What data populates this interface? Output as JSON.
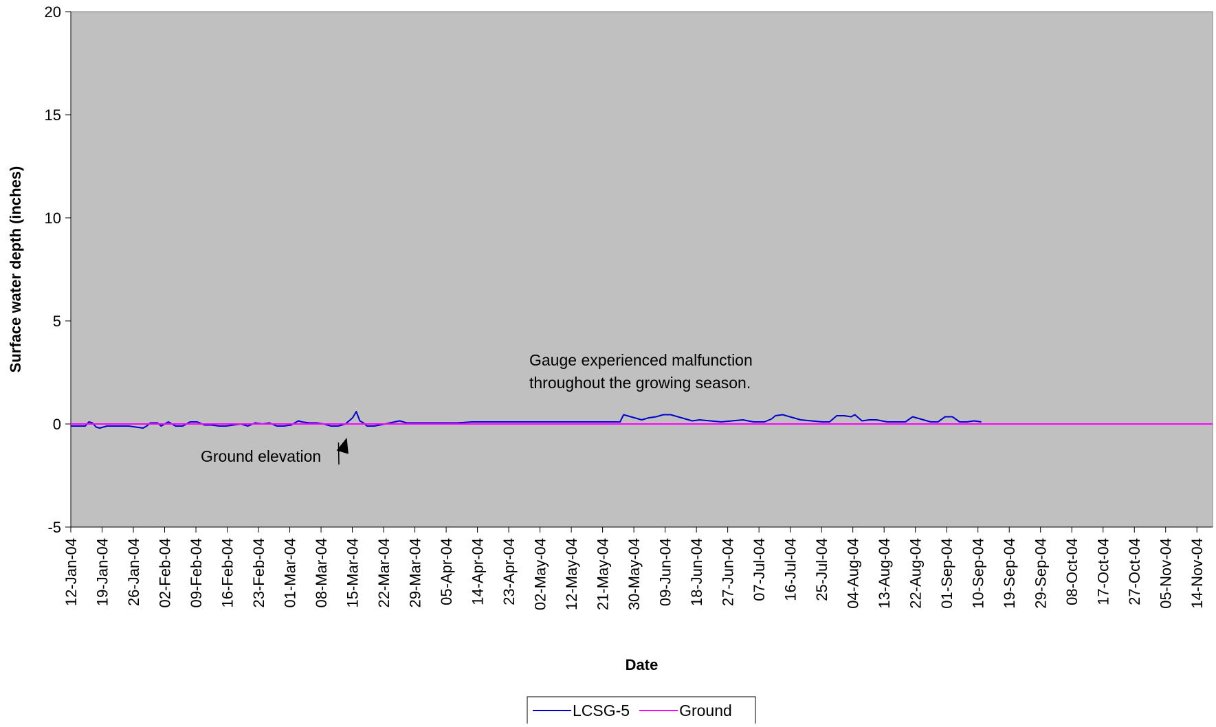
{
  "chart_data": {
    "type": "line",
    "title": "",
    "xlabel": "Date",
    "ylabel": "Surface water depth (inches)",
    "ylim": [
      -5,
      20
    ],
    "yticks": [
      -5,
      0,
      5,
      10,
      15,
      20
    ],
    "xlim": [
      "2004-01-12",
      "2004-11-23"
    ],
    "x_tick_labels": [
      "12-Jan-04",
      "19-Jan-04",
      "26-Jan-04",
      "02-Feb-04",
      "09-Feb-04",
      "16-Feb-04",
      "23-Feb-04",
      "01-Mar-04",
      "08-Mar-04",
      "15-Mar-04",
      "22-Mar-04",
      "29-Mar-04",
      "05-Apr-04",
      "14-Apr-04",
      "23-Apr-04",
      "02-May-04",
      "12-May-04",
      "21-May-04",
      "30-May-04",
      "09-Jun-04",
      "18-Jun-04",
      "27-Jun-04",
      "07-Jul-04",
      "16-Jul-04",
      "25-Jul-04",
      "04-Aug-04",
      "13-Aug-04",
      "22-Aug-04",
      "01-Sep-04",
      "10-Sep-04",
      "19-Sep-04",
      "29-Sep-04",
      "08-Oct-04",
      "17-Oct-04",
      "27-Oct-04",
      "05-Nov-04",
      "14-Nov-04"
    ],
    "grid": false,
    "plot_background": "#c0c0c0",
    "legend": {
      "position": "bottom"
    },
    "series": [
      {
        "name": "LCSG-5",
        "color": "#0000cc",
        "x": [
          "2004-01-12",
          "2004-01-14",
          "2004-01-16",
          "2004-01-17",
          "2004-01-18",
          "2004-01-19",
          "2004-01-20",
          "2004-01-22",
          "2004-01-24",
          "2004-01-26",
          "2004-01-28",
          "2004-01-30",
          "2004-02-01",
          "2004-02-02",
          "2004-02-03",
          "2004-02-05",
          "2004-02-06",
          "2004-02-08",
          "2004-02-10",
          "2004-02-12",
          "2004-02-14",
          "2004-02-16",
          "2004-02-18",
          "2004-02-20",
          "2004-02-22",
          "2004-02-24",
          "2004-02-26",
          "2004-02-28",
          "2004-03-01",
          "2004-03-03",
          "2004-03-05",
          "2004-03-07",
          "2004-03-09",
          "2004-03-11",
          "2004-03-13",
          "2004-03-15",
          "2004-03-16",
          "2004-03-18",
          "2004-03-20",
          "2004-03-22",
          "2004-03-24",
          "2004-03-26",
          "2004-03-28",
          "2004-03-30",
          "2004-03-31",
          "2004-04-01",
          "2004-04-02",
          "2004-04-03",
          "2004-04-05",
          "2004-04-08",
          "2004-04-12",
          "2004-04-14",
          "2004-04-18",
          "2004-04-23",
          "2004-04-28",
          "2004-05-02",
          "2004-05-07",
          "2004-05-12",
          "2004-05-17",
          "2004-05-21",
          "2004-05-26",
          "2004-05-30",
          "2004-06-04",
          "2004-06-09",
          "2004-06-12",
          "2004-06-13",
          "2004-06-15",
          "2004-06-18",
          "2004-06-20",
          "2004-06-22",
          "2004-06-24",
          "2004-06-26",
          "2004-06-28",
          "2004-06-30",
          "2004-07-02",
          "2004-07-04",
          "2004-07-07",
          "2004-07-10",
          "2004-07-13",
          "2004-07-16",
          "2004-07-19",
          "2004-07-22",
          "2004-07-24",
          "2004-07-25",
          "2004-07-27",
          "2004-07-29",
          "2004-08-01",
          "2004-08-04",
          "2004-08-07",
          "2004-08-09",
          "2004-08-11",
          "2004-08-13",
          "2004-08-15",
          "2004-08-16",
          "2004-08-18",
          "2004-08-20",
          "2004-08-22",
          "2004-08-25",
          "2004-08-28",
          "2004-08-30",
          "2004-09-01",
          "2004-09-03",
          "2004-09-06",
          "2004-09-08",
          "2004-09-10",
          "2004-09-12",
          "2004-09-14",
          "2004-09-16",
          "2004-09-18",
          "2004-09-20"
        ],
        "y": [
          -0.1,
          -0.1,
          -0.1,
          0.1,
          0.05,
          -0.15,
          -0.2,
          -0.1,
          -0.1,
          -0.1,
          -0.1,
          -0.15,
          -0.2,
          -0.1,
          0.05,
          0.05,
          -0.1,
          0.1,
          -0.1,
          -0.1,
          0.1,
          0.1,
          -0.05,
          -0.05,
          -0.1,
          -0.1,
          -0.05,
          0.0,
          -0.1,
          0.05,
          0.0,
          0.05,
          -0.1,
          -0.1,
          -0.05,
          0.15,
          0.1,
          0.05,
          0.05,
          0.0,
          -0.1,
          -0.1,
          0.0,
          0.3,
          0.6,
          0.15,
          0.05,
          -0.1,
          -0.1,
          0.0,
          0.15,
          0.05,
          0.05,
          0.05,
          0.05,
          0.1,
          0.1,
          0.1,
          0.1,
          0.1,
          0.1,
          0.1,
          0.1,
          0.1,
          0.1,
          0.45,
          0.35,
          0.2,
          0.3,
          0.35,
          0.45,
          0.45,
          0.35,
          0.25,
          0.15,
          0.2,
          0.15,
          0.1,
          0.15,
          0.2,
          0.1,
          0.1,
          0.25,
          0.4,
          0.45,
          0.35,
          0.2,
          0.15,
          0.1,
          0.1,
          0.4,
          0.4,
          0.35,
          0.45,
          0.15,
          0.2,
          0.2,
          0.1,
          0.1,
          0.1,
          0.35,
          0.25,
          0.1,
          0.1,
          0.35,
          0.35,
          0.1,
          0.1,
          0.15,
          0.1
        ]
      },
      {
        "name": "Ground",
        "color": "#ff00ff",
        "x": [
          "2004-01-12",
          "2004-11-23"
        ],
        "y": [
          0,
          0
        ]
      }
    ],
    "annotations": [
      {
        "id": "malfunction-note",
        "lines": [
          "Gauge experienced malfunction",
          "throughout the growing season."
        ]
      },
      {
        "id": "ground-elevation",
        "lines": [
          "Ground elevation"
        ],
        "arrow_to": {
          "x": "2004-03-28",
          "y": -0.6
        }
      }
    ]
  }
}
